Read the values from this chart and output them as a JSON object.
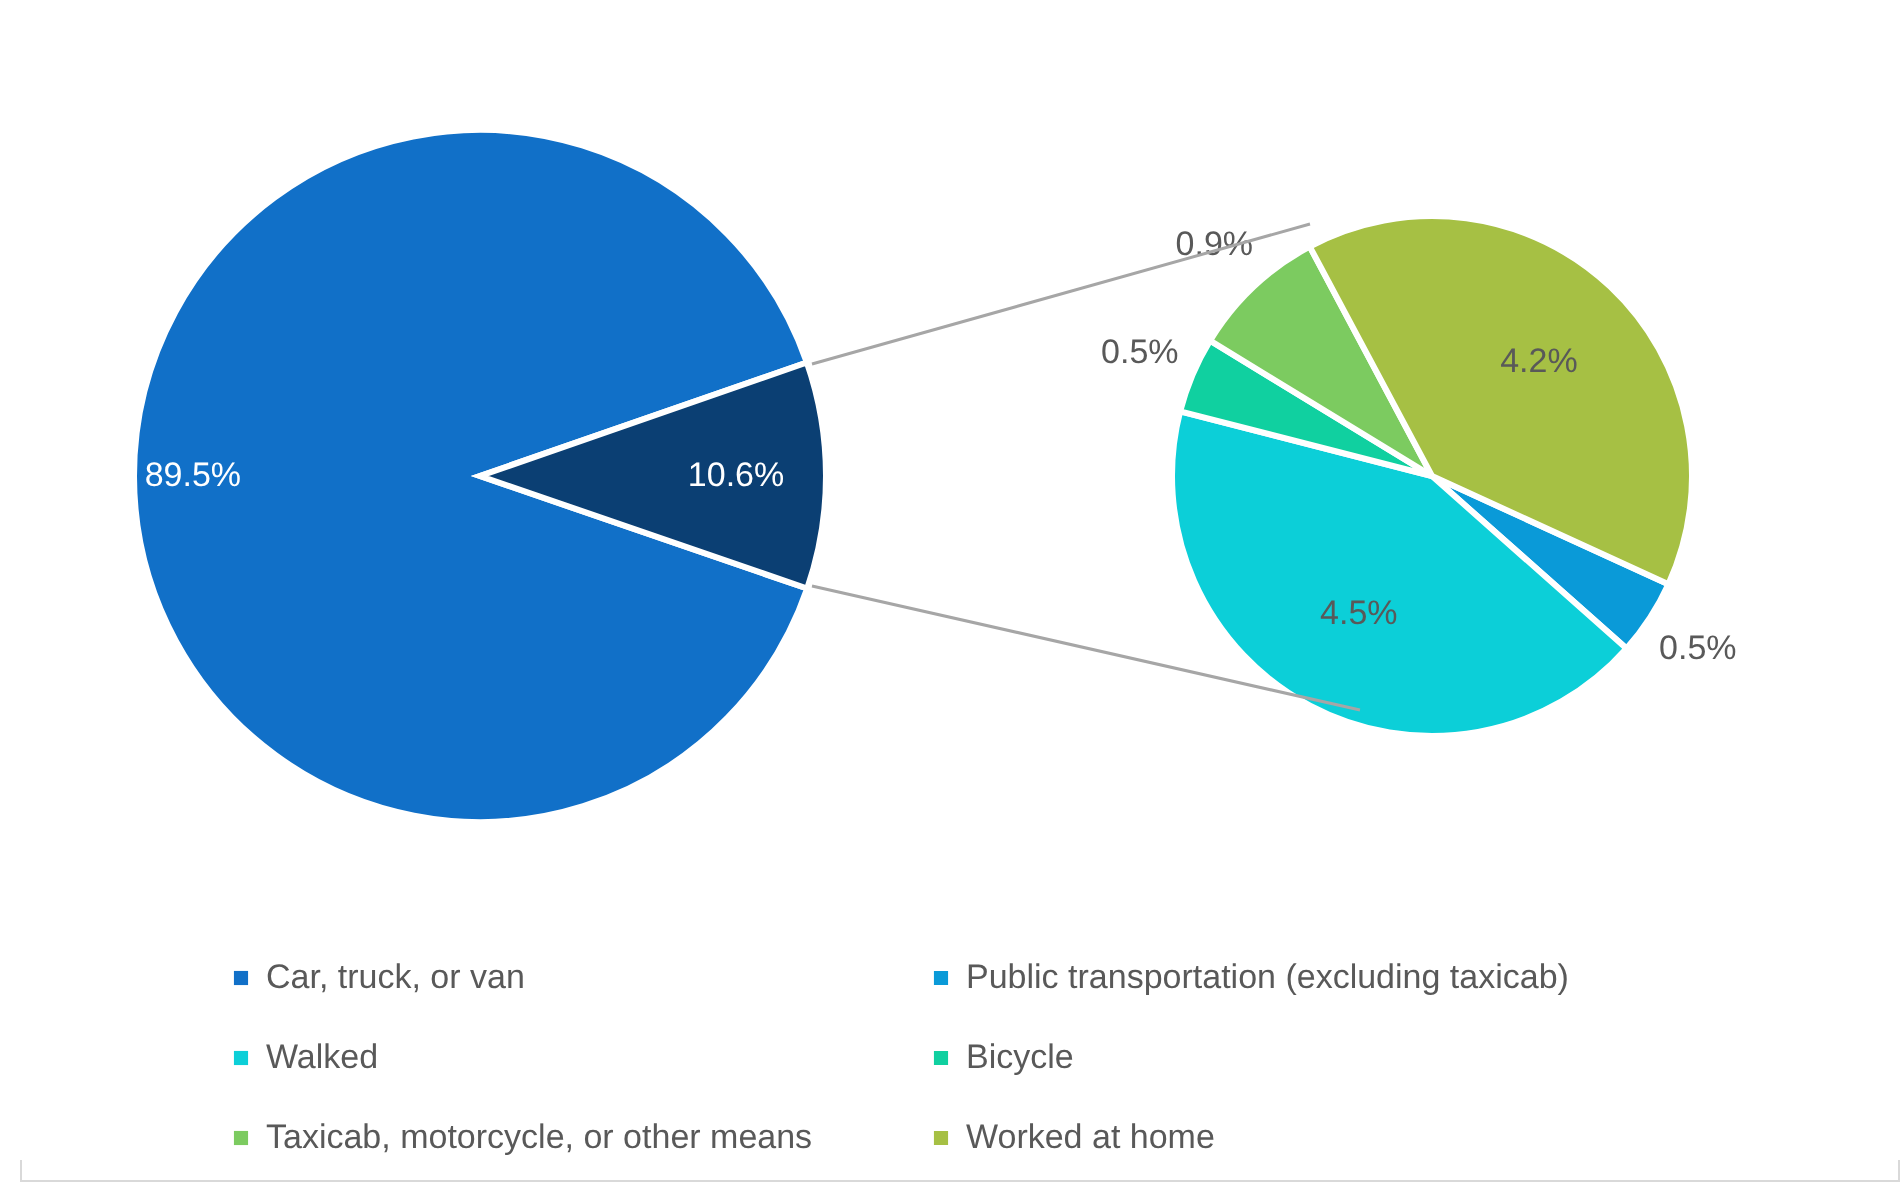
{
  "chart_data": [
    {
      "type": "pie",
      "categories": [
        "Car, truck, or van",
        null
      ],
      "values": [
        89.5,
        10.6
      ],
      "colors": [
        "#1170c8",
        "#0b3f73"
      ],
      "value_labels": [
        "89.5%",
        "10.6%"
      ],
      "legend": "bottom"
    },
    {
      "type": "pie",
      "categories": [
        "Public transportation (excluding taxicab)",
        "Walked",
        "Bicycle",
        "Taxicab, motorcycle, or other means",
        "Worked at home"
      ],
      "values": [
        0.5,
        4.5,
        0.5,
        0.9,
        4.2
      ],
      "colors": [
        "#0a9ad8",
        "#0ccfd8",
        "#10d0a0",
        "#7ccb60",
        "#a6c044"
      ],
      "value_labels": [
        "0.5%",
        "4.5%",
        "0.5%",
        "0.9%",
        "4.2%"
      ],
      "legend": "bottom"
    }
  ]
}
